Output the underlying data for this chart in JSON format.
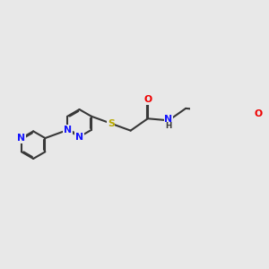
{
  "bg_color": "#e8e8e8",
  "bond_color": "#383838",
  "bond_width": 1.5,
  "dbo": 0.052,
  "atom_colors": {
    "N": "#1414ff",
    "O": "#ee0000",
    "S": "#b8a800",
    "C": "#383838"
  },
  "font_size": 7.8,
  "fig_size": [
    3.0,
    3.0
  ],
  "dpi": 100,
  "xlim": [
    0,
    10
  ],
  "ylim": [
    1,
    9
  ]
}
